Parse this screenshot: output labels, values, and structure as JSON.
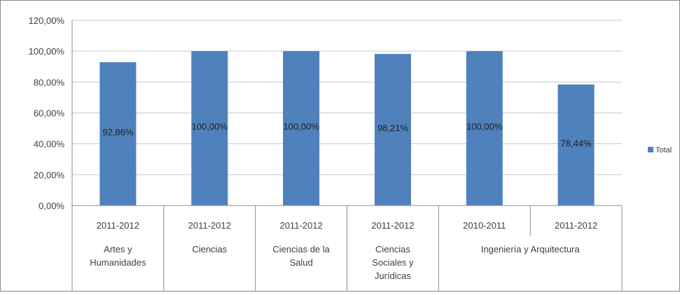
{
  "chart_data": {
    "type": "bar",
    "title": "",
    "xlabel": "",
    "ylabel": "",
    "ylim": [
      0,
      120
    ],
    "yticks": [
      "0,00%",
      "20,00%",
      "40,00%",
      "60,00%",
      "80,00%",
      "100,00%",
      "120,00%"
    ],
    "grid": true,
    "legend_position": "right",
    "categories": [
      {
        "year": "2011-2012",
        "group": "Artes y Humanidades"
      },
      {
        "year": "2011-2012",
        "group": "Ciencias"
      },
      {
        "year": "2011-2012",
        "group": "Ciencias de la Salud"
      },
      {
        "year": "2011-2012",
        "group": "Ciencias Sociales y Jurídicas"
      },
      {
        "year": "2010-2011",
        "group": "Ingeniería y Arquitectura"
      },
      {
        "year": "2011-2012",
        "group": "Ingeniería y Arquitectura"
      }
    ],
    "groups": [
      {
        "label_lines": [
          "Artes y",
          "Humanidades"
        ]
      },
      {
        "label_lines": [
          "Ciencias"
        ]
      },
      {
        "label_lines": [
          "Ciencias de la",
          "Salud"
        ]
      },
      {
        "label_lines": [
          "Ciencias",
          "Sociales y",
          "Jurídicas"
        ]
      },
      {
        "label_lines": [
          "Ingeniería y Arquitectura"
        ]
      }
    ],
    "series": [
      {
        "name": "Total",
        "color": "#4f81bd",
        "values": [
          92.86,
          100.0,
          100.0,
          98.21,
          100.0,
          78.44
        ],
        "data_labels": [
          "92,86%",
          "100,00%",
          "100,00%",
          "98,21%",
          "100,00%",
          "78,44%"
        ]
      }
    ]
  }
}
